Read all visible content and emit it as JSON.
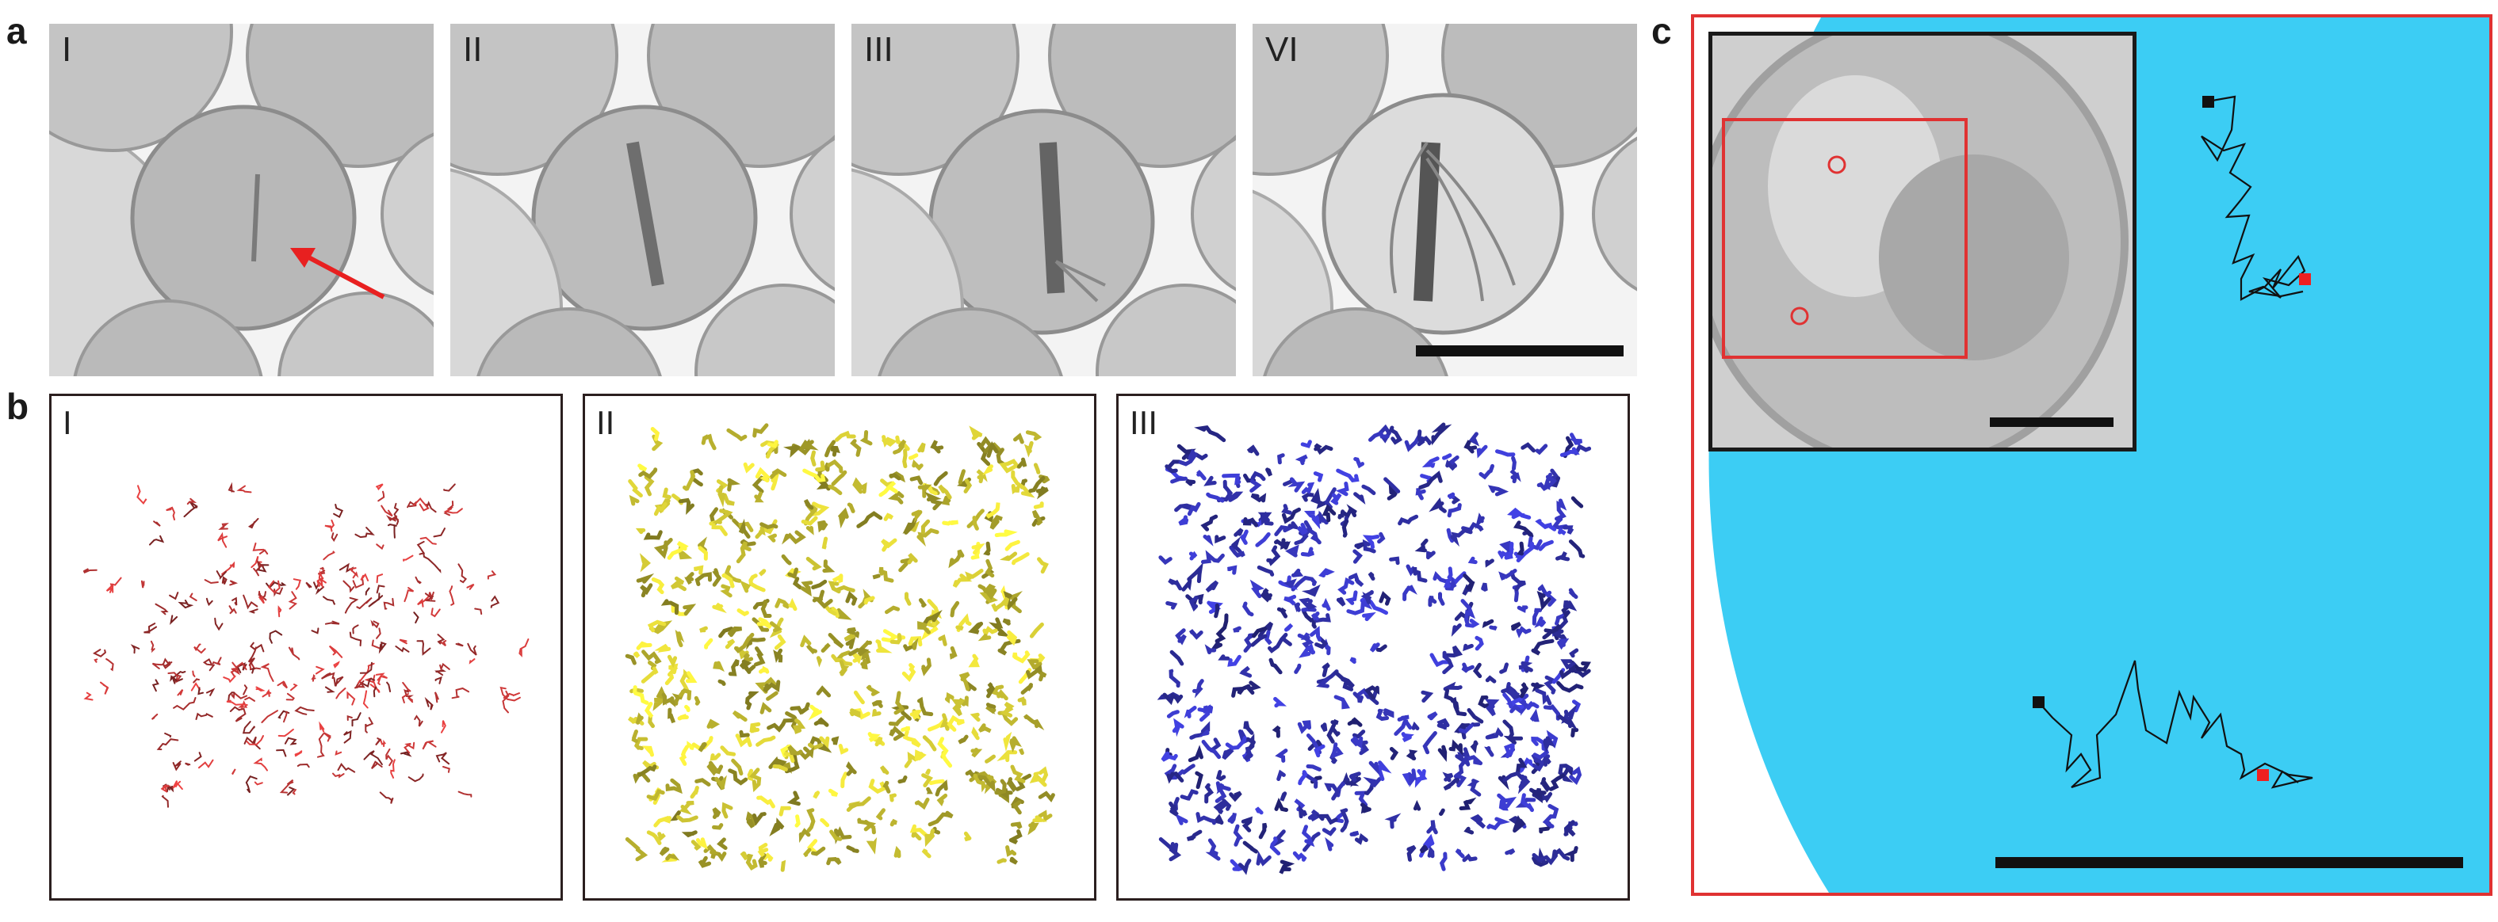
{
  "panel_labels": {
    "a": "a",
    "b": "b",
    "c": "c"
  },
  "panel_a": {
    "tiles": [
      {
        "label": "I"
      },
      {
        "label": "II"
      },
      {
        "label": "III"
      },
      {
        "label": "VI"
      }
    ]
  },
  "panel_b": {
    "boxes": [
      {
        "label": "I",
        "color": "#d03a3a"
      },
      {
        "label": "II",
        "color": "#e6dc3a"
      },
      {
        "label": "III",
        "color": "#3a3ac8"
      }
    ]
  },
  "panel_c": {
    "background_color": "#3ccdf4",
    "border_color": "#e03232",
    "start_marker_color": "#111111",
    "end_marker_color": "#ee2020"
  }
}
